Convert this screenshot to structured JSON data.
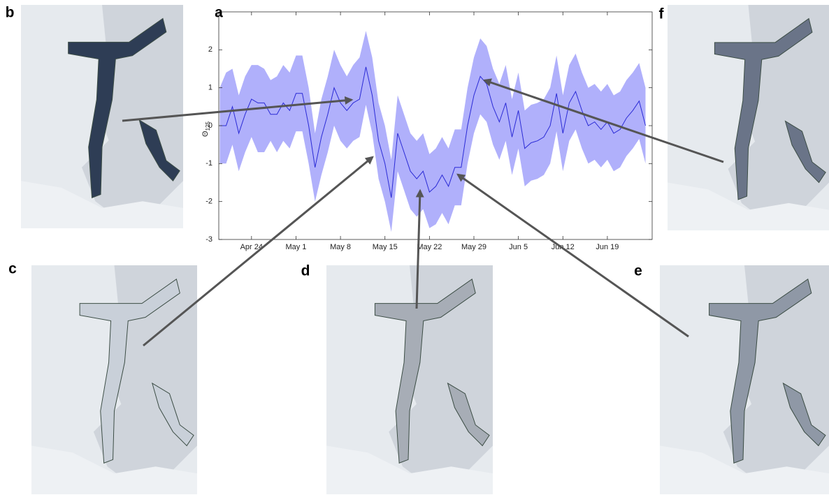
{
  "chart_data": {
    "type": "line-band",
    "panel_label": "a",
    "ylabel": "Θ",
    "ylabel_subscript": "125",
    "x": [
      "Apr 19",
      "Apr 20",
      "Apr 21",
      "Apr 22",
      "Apr 23",
      "Apr 24",
      "Apr 25",
      "Apr 26",
      "Apr 27",
      "Apr 28",
      "Apr 29",
      "Apr 30",
      "May 1",
      "May 2",
      "May 3",
      "May 4",
      "May 5",
      "May 6",
      "May 7",
      "May 8",
      "May 9",
      "May 10",
      "May 11",
      "May 12",
      "May 13",
      "May 14",
      "May 15",
      "May 16",
      "May 17",
      "May 18",
      "May 19",
      "May 20",
      "May 21",
      "May 22",
      "May 23",
      "May 24",
      "May 25",
      "May 26",
      "May 27",
      "May 28",
      "May 29",
      "May 30",
      "May 31",
      "Jun 1",
      "Jun 2",
      "Jun 3",
      "Jun 4",
      "Jun 5",
      "Jun 6",
      "Jun 7",
      "Jun 8",
      "Jun 9",
      "Jun 10",
      "Jun 11",
      "Jun 12",
      "Jun 13",
      "Jun 14",
      "Jun 15",
      "Jun 16",
      "Jun 17",
      "Jun 18",
      "Jun 19",
      "Jun 20",
      "Jun 21",
      "Jun 22",
      "Jun 23",
      "Jun 24",
      "Jun 25"
    ],
    "values": [
      0.0,
      0.0,
      0.5,
      -0.2,
      0.3,
      0.7,
      0.6,
      0.6,
      0.3,
      0.3,
      0.6,
      0.4,
      0.85,
      0.85,
      0.0,
      -1.1,
      -0.3,
      0.3,
      1.0,
      0.6,
      0.4,
      0.6,
      0.7,
      1.55,
      0.8,
      -0.4,
      -1.0,
      -1.9,
      -0.2,
      -0.7,
      -1.2,
      -1.4,
      -1.2,
      -1.75,
      -1.6,
      -1.3,
      -1.6,
      -1.1,
      -1.1,
      0.0,
      0.8,
      1.3,
      1.1,
      0.5,
      0.1,
      0.6,
      -0.3,
      0.4,
      -0.6,
      -0.45,
      -0.4,
      -0.3,
      0.0,
      0.85,
      -0.2,
      0.6,
      0.9,
      0.4,
      0.0,
      0.1,
      -0.1,
      0.1,
      -0.2,
      -0.1,
      0.2,
      0.4,
      0.65,
      0.0
    ],
    "upper": [
      1.0,
      1.4,
      1.5,
      0.8,
      1.3,
      1.6,
      1.6,
      1.5,
      1.2,
      1.3,
      1.6,
      1.4,
      1.85,
      1.85,
      1.0,
      -0.2,
      0.7,
      1.3,
      2.0,
      1.6,
      1.3,
      1.6,
      1.8,
      2.5,
      1.8,
      0.6,
      0.0,
      -0.9,
      0.8,
      0.3,
      -0.2,
      -0.4,
      -0.2,
      -0.75,
      -0.6,
      -0.3,
      -0.6,
      -0.1,
      -0.1,
      1.0,
      1.8,
      2.3,
      2.1,
      1.5,
      1.1,
      1.6,
      0.7,
      1.4,
      0.4,
      0.55,
      0.6,
      0.7,
      1.0,
      1.85,
      0.8,
      1.6,
      1.9,
      1.4,
      1.0,
      1.1,
      0.9,
      1.1,
      0.8,
      0.9,
      1.2,
      1.4,
      1.65,
      1.0
    ],
    "lower": [
      -1.0,
      -1.0,
      -0.5,
      -1.2,
      -0.7,
      -0.3,
      -0.7,
      -0.7,
      -0.4,
      -0.7,
      -0.4,
      -0.6,
      -0.15,
      -0.15,
      -1.0,
      -2.0,
      -1.3,
      -0.7,
      0.0,
      -0.4,
      -0.6,
      -0.4,
      -0.3,
      0.55,
      -0.2,
      -1.4,
      -2.0,
      -2.8,
      -1.2,
      -1.7,
      -2.2,
      -2.4,
      -2.2,
      -2.7,
      -2.6,
      -2.3,
      -2.6,
      -2.1,
      -2.1,
      -1.0,
      -0.2,
      0.3,
      0.1,
      -0.5,
      -0.9,
      -0.4,
      -1.3,
      -0.6,
      -1.6,
      -1.45,
      -1.4,
      -1.3,
      -1.0,
      -0.15,
      -1.2,
      -0.4,
      -0.1,
      -0.6,
      -1.0,
      -0.9,
      -1.1,
      -0.9,
      -1.2,
      -1.1,
      -0.8,
      -0.6,
      -0.35,
      -1.0
    ],
    "color": "#2b2bd6",
    "band_color": "#b0b0fb",
    "ylim": [
      -3,
      3
    ],
    "yticks": [
      -3,
      -2,
      -1,
      0,
      1,
      2
    ],
    "xticks": [
      "Apr 24",
      "May 1",
      "May 8",
      "May 15",
      "May 22",
      "May 29",
      "Jun 5",
      "Jun 12",
      "Jun 19"
    ]
  },
  "panels": [
    {
      "label": "b"
    },
    {
      "label": "c"
    },
    {
      "label": "d"
    },
    {
      "label": "e"
    },
    {
      "label": "f"
    }
  ]
}
